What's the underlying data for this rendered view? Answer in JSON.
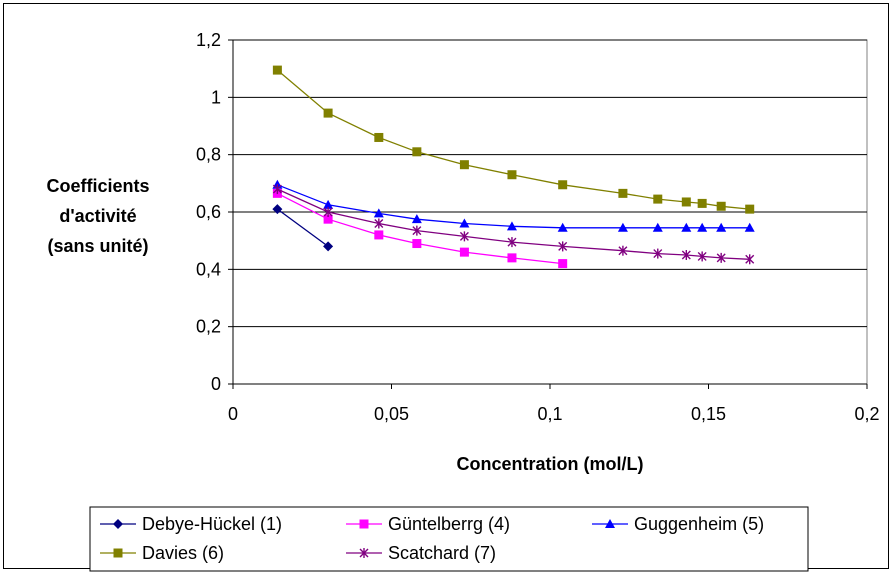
{
  "chart_data": {
    "type": "line",
    "title": "",
    "xlabel": "Concentration (mol/L)",
    "ylabel_lines": [
      "Coefficients",
      "d'activité",
      "(sans unité)"
    ],
    "xlim": [
      0,
      0.2
    ],
    "ylim": [
      0,
      1.2
    ],
    "x_ticks": [
      {
        "value": 0,
        "label": "0"
      },
      {
        "value": 0.05,
        "label": "0,05"
      },
      {
        "value": 0.1,
        "label": "0,1"
      },
      {
        "value": 0.15,
        "label": "0,15"
      },
      {
        "value": 0.2,
        "label": "0,2"
      }
    ],
    "y_ticks": [
      {
        "value": 0,
        "label": "0"
      },
      {
        "value": 0.2,
        "label": "0,2"
      },
      {
        "value": 0.4,
        "label": "0,4"
      },
      {
        "value": 0.6,
        "label": "0,6"
      },
      {
        "value": 0.8,
        "label": "0,8"
      },
      {
        "value": 1.0,
        "label": "1"
      },
      {
        "value": 1.2,
        "label": "1,2"
      }
    ],
    "grid": "horizontal",
    "legend_position": "bottom",
    "series": [
      {
        "name": "Debye-Hückel (1)",
        "color": "#000080",
        "marker": "diamond",
        "x": [
          0.014,
          0.03
        ],
        "y": [
          0.61,
          0.48
        ]
      },
      {
        "name": "Güntelberrg (4)",
        "color": "#ff00ff",
        "marker": "square",
        "x": [
          0.014,
          0.03,
          0.046,
          0.058,
          0.073,
          0.088,
          0.104
        ],
        "y": [
          0.665,
          0.575,
          0.52,
          0.49,
          0.46,
          0.44,
          0.42
        ]
      },
      {
        "name": "Guggenheim (5)",
        "color": "#0000ff",
        "marker": "triangle",
        "x": [
          0.014,
          0.03,
          0.046,
          0.058,
          0.073,
          0.088,
          0.104,
          0.123,
          0.134,
          0.143,
          0.148,
          0.154,
          0.163
        ],
        "y": [
          0.695,
          0.625,
          0.595,
          0.575,
          0.56,
          0.55,
          0.545,
          0.545,
          0.545,
          0.545,
          0.545,
          0.545,
          0.545
        ]
      },
      {
        "name": "Davies (6)",
        "color": "#808000",
        "marker": "square",
        "x": [
          0.014,
          0.03,
          0.046,
          0.058,
          0.073,
          0.088,
          0.104,
          0.123,
          0.134,
          0.143,
          0.148,
          0.154,
          0.163
        ],
        "y": [
          1.095,
          0.945,
          0.86,
          0.81,
          0.765,
          0.73,
          0.695,
          0.665,
          0.645,
          0.635,
          0.63,
          0.62,
          0.61
        ]
      },
      {
        "name": "Scatchard (7)",
        "color": "#800080",
        "marker": "asterisk",
        "x": [
          0.014,
          0.03,
          0.046,
          0.058,
          0.073,
          0.088,
          0.104,
          0.123,
          0.134,
          0.143,
          0.148,
          0.154,
          0.163
        ],
        "y": [
          0.68,
          0.6,
          0.56,
          0.535,
          0.515,
          0.495,
          0.48,
          0.465,
          0.455,
          0.45,
          0.445,
          0.44,
          0.435
        ]
      }
    ]
  }
}
